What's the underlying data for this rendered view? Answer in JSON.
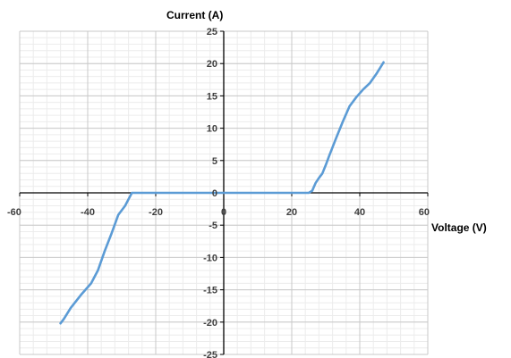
{
  "chart_data": {
    "type": "line",
    "title": "",
    "xlabel": "Voltage (V)",
    "ylabel": "Current (A)",
    "xlim": [
      -60,
      60
    ],
    "ylim": [
      -25,
      25
    ],
    "x_major_step": 20,
    "y_major_step": 5,
    "x_minor_step": 4,
    "y_minor_step": 1,
    "x_tick_labels": [
      "-60",
      "-40",
      "-20",
      "0",
      "20",
      "40",
      "60"
    ],
    "y_tick_labels": [
      "25",
      "20",
      "15",
      "10",
      "5",
      "0",
      "-5",
      "-10",
      "-15",
      "-20",
      "-25"
    ],
    "grid": true,
    "legend": "none",
    "series": [
      {
        "color": "#5b9bd5",
        "points": [
          [
            -48,
            -20.2
          ],
          [
            -47,
            -19.5
          ],
          [
            -45,
            -17.8
          ],
          [
            -42,
            -15.8
          ],
          [
            -39,
            -14
          ],
          [
            -37,
            -12
          ],
          [
            -35,
            -9
          ],
          [
            -33,
            -6.3
          ],
          [
            -31,
            -3.4
          ],
          [
            -29,
            -2
          ],
          [
            -28,
            -1
          ],
          [
            -27,
            0
          ],
          [
            -25,
            0
          ],
          [
            0,
            0
          ],
          [
            20,
            0
          ],
          [
            25,
            0
          ],
          [
            26,
            0.3
          ],
          [
            27,
            1.5
          ],
          [
            28,
            2.3
          ],
          [
            29,
            3
          ],
          [
            30,
            4.3
          ],
          [
            31,
            5.7
          ],
          [
            33,
            8.4
          ],
          [
            35,
            11
          ],
          [
            37,
            13.4
          ],
          [
            39,
            14.8
          ],
          [
            41,
            16
          ],
          [
            43,
            17
          ],
          [
            45,
            18.5
          ],
          [
            47,
            20.2
          ]
        ]
      }
    ]
  }
}
